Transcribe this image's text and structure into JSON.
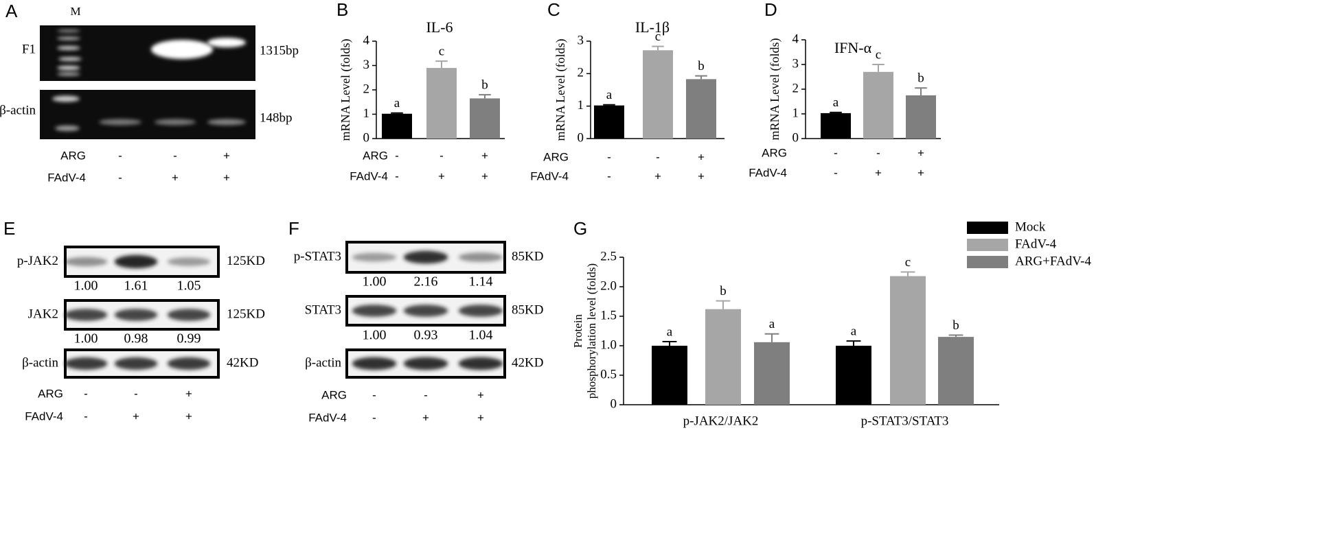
{
  "chart_data": [
    {
      "type": "bar",
      "panel": "B",
      "title": "IL-6",
      "y_label": "mRNA Level (folds)",
      "values": [
        1.02,
        2.9,
        1.65
      ],
      "errors": [
        0.03,
        0.28,
        0.15
      ],
      "letters": [
        "a",
        "c",
        "b"
      ],
      "colors": [
        "#000000",
        "#a6a6a6",
        "#7f7f7f"
      ],
      "ylim": [
        0,
        4
      ],
      "yticks": [
        0,
        1,
        2,
        3,
        4
      ],
      "conditions": [
        {
          "label": "ARG",
          "signs": [
            "-",
            "-",
            "+"
          ]
        },
        {
          "label": "FAdV-4",
          "signs": [
            "-",
            "+",
            "+"
          ]
        }
      ]
    },
    {
      "type": "bar",
      "panel": "C",
      "title": "IL-1β",
      "y_label": "mRNA Level (folds)",
      "values": [
        1.02,
        2.72,
        1.83
      ],
      "errors": [
        0.02,
        0.12,
        0.1
      ],
      "letters": [
        "a",
        "c",
        "b"
      ],
      "colors": [
        "#000000",
        "#a6a6a6",
        "#7f7f7f"
      ],
      "ylim": [
        0,
        3
      ],
      "yticks": [
        0,
        1,
        2,
        3
      ],
      "conditions": [
        {
          "label": "ARG",
          "signs": [
            "-",
            "-",
            "+"
          ]
        },
        {
          "label": "FAdV-4",
          "signs": [
            "-",
            "+",
            "+"
          ]
        }
      ]
    },
    {
      "type": "bar",
      "panel": "D",
      "title": "IFN-α",
      "y_label": "mRNA Level (folds)",
      "values": [
        1.03,
        2.7,
        1.75
      ],
      "errors": [
        0.03,
        0.3,
        0.3
      ],
      "letters": [
        "a",
        "c",
        "b"
      ],
      "colors": [
        "#000000",
        "#a6a6a6",
        "#7f7f7f"
      ],
      "ylim": [
        0,
        4
      ],
      "yticks": [
        0,
        1,
        2,
        3,
        4
      ],
      "conditions": [
        {
          "label": "ARG",
          "signs": [
            "-",
            "-",
            "+"
          ]
        },
        {
          "label": "FAdV-4",
          "signs": [
            "-",
            "+",
            "+"
          ]
        }
      ]
    },
    {
      "type": "grouped_bar",
      "panel": "G",
      "y_label": [
        "Protein",
        "phosphorylation level (folds)"
      ],
      "categories": [
        "p-JAK2/JAK2",
        "p-STAT3/STAT3"
      ],
      "series": [
        {
          "name": "Mock",
          "color": "#000000",
          "values": [
            1.0,
            1.0
          ],
          "errors": [
            0.07,
            0.08
          ],
          "letters": [
            "a",
            "a"
          ]
        },
        {
          "name": "FAdV-4",
          "color": "#a6a6a6",
          "values": [
            1.62,
            2.18
          ],
          "errors": [
            0.14,
            0.07
          ],
          "letters": [
            "b",
            "c"
          ]
        },
        {
          "name": "ARG+FAdV-4",
          "color": "#7f7f7f",
          "values": [
            1.06,
            1.15
          ],
          "errors": [
            0.14,
            0.03
          ],
          "letters": [
            "a",
            "b"
          ]
        }
      ],
      "ylim": [
        0,
        2.5
      ],
      "yticks": [
        0,
        0.5,
        {
          "value": 1,
          "label": "1.0"
        },
        {
          "value": 1.5,
          "label": "1.5"
        },
        {
          "value": 2,
          "label": "2.0"
        },
        {
          "value": 2.5,
          "label": "2.5"
        }
      ],
      "legend": "top-right"
    }
  ],
  "gels": [
    {
      "panel": "A",
      "marker": "M",
      "blots": [
        {
          "label": "F1",
          "size": "1315bp"
        },
        {
          "label": "β-actin",
          "size": "148bp"
        }
      ],
      "conditions": [
        {
          "label": "ARG",
          "signs": [
            "-",
            "-",
            "+"
          ]
        },
        {
          "label": "FAdV-4",
          "signs": [
            "-",
            "+",
            "+"
          ]
        }
      ]
    },
    {
      "panel": "E",
      "blots": [
        {
          "label": "p-JAK2",
          "size": "125KD",
          "ratios": [
            "1.00",
            "1.61",
            "1.05"
          ]
        },
        {
          "label": "JAK2",
          "size": "125KD",
          "ratios": [
            "1.00",
            "0.98",
            "0.99"
          ]
        },
        {
          "label": "β-actin",
          "size": "42KD"
        }
      ],
      "conditions": [
        {
          "label": "ARG",
          "signs": [
            "-",
            "-",
            "+"
          ]
        },
        {
          "label": "FAdV-4",
          "signs": [
            "-",
            "+",
            "+"
          ]
        }
      ]
    },
    {
      "panel": "F",
      "blots": [
        {
          "label": "p-STAT3",
          "size": "85KD",
          "ratios": [
            "1.00",
            "2.16",
            "1.14"
          ]
        },
        {
          "label": "STAT3",
          "size": "85KD",
          "ratios": [
            "1.00",
            "0.93",
            "1.04"
          ]
        },
        {
          "label": "β-actin",
          "size": "42KD"
        }
      ],
      "conditions": [
        {
          "label": "ARG",
          "signs": [
            "-",
            "-",
            "+"
          ]
        },
        {
          "label": "FAdV-4",
          "signs": [
            "-",
            "+",
            "+"
          ]
        }
      ]
    }
  ]
}
